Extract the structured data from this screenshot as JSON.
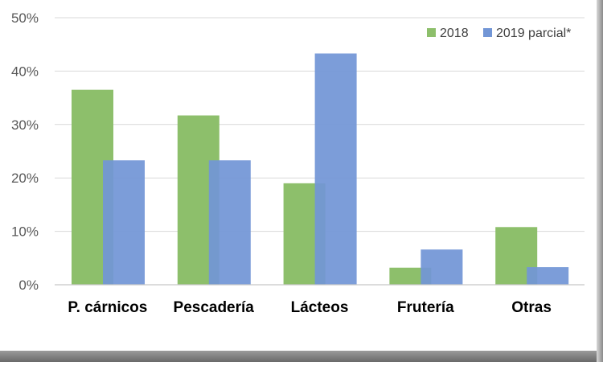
{
  "chart_data": {
    "type": "bar",
    "categories": [
      "P. cárnicos",
      "Pescadería",
      "Lácteos",
      "Frutería",
      "Otras"
    ],
    "series": [
      {
        "name": "2018",
        "values": [
          36.5,
          31.7,
          19.0,
          3.2,
          10.8
        ],
        "color": "#8dbf6b"
      },
      {
        "name": "2019 parcial*",
        "values": [
          23.3,
          23.3,
          43.3,
          6.6,
          3.3
        ],
        "color": "#7296d6"
      }
    ],
    "yticks": [
      "0%",
      "10%",
      "20%",
      "30%",
      "40%",
      "50%"
    ],
    "ylim": [
      0,
      50
    ],
    "grid": true,
    "legend_position": "top-right"
  }
}
